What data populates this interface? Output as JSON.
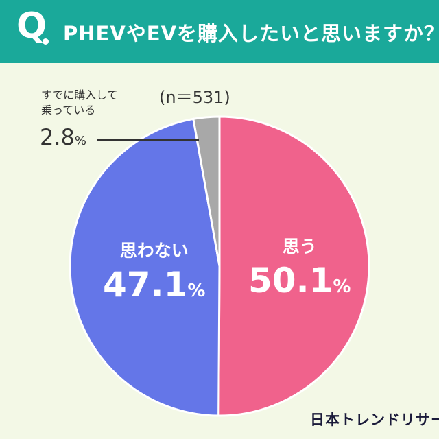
{
  "header": {
    "q_mark": "Q",
    "question": "PHEVやEVを購入したいと思いますか？"
  },
  "n_label": "(n＝531)",
  "chart_data": {
    "type": "pie",
    "categories": [
      "思う",
      "思わない",
      "すでに購入して乗っている"
    ],
    "values": [
      50.1,
      47.1,
      2.8
    ],
    "unit": "%",
    "colors": [
      "#f0628c",
      "#6476e8",
      "#a8a8a8"
    ],
    "title": "PHEVやEVを購入したいと思いますか？",
    "sample_size": "(n＝531)"
  },
  "labels": {
    "yes_name": "思う",
    "yes_value": "50.1",
    "no_name": "思わない",
    "no_value": "47.1",
    "already_line1": "すでに購入して",
    "already_line2": "乗っている",
    "already_value": "2.8",
    "unit": "%"
  },
  "brand": "日本トレンドリサーチ",
  "colors": {
    "header_bg": "#1aa99a",
    "page_bg": "#f3f8e6"
  }
}
